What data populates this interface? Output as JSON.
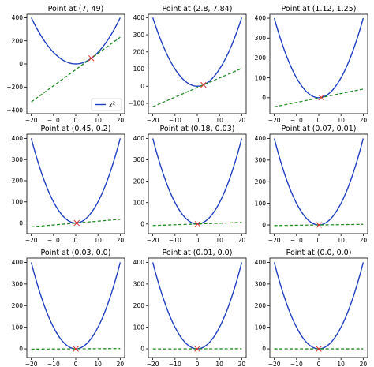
{
  "chart_data": [
    {
      "type": "line",
      "title": "Point at (7, 49)",
      "point": [
        7,
        49
      ],
      "ylim": [
        -430,
        430
      ],
      "xlim": [
        -22,
        22
      ],
      "xticks": [
        -20,
        -10,
        0,
        10,
        20
      ],
      "yticks": [
        -400,
        -200,
        0,
        200,
        400
      ],
      "legend": {
        "label": "x²",
        "base": "x",
        "exponent": "2",
        "location": "lower-right"
      },
      "series": [
        {
          "kind": "curve",
          "expr": "x^2",
          "color": "#1f3fbf"
        },
        {
          "kind": "tangent",
          "color": "#228b22",
          "dash": true
        }
      ]
    },
    {
      "type": "line",
      "title": "Point at (2.8, 7.84)",
      "point": [
        2.8,
        7.84
      ],
      "ylim": [
        -160,
        420
      ],
      "xlim": [
        -22,
        22
      ],
      "xticks": [
        -20,
        -10,
        0,
        10,
        20
      ],
      "yticks": [
        -100,
        0,
        100,
        200,
        300,
        400
      ],
      "series": [
        {
          "kind": "curve",
          "expr": "x^2",
          "color": "#1f3fbf"
        },
        {
          "kind": "tangent",
          "color": "#228b22",
          "dash": true
        }
      ]
    },
    {
      "type": "line",
      "title": "Point at (1.12, 1.25)",
      "point": [
        1.12,
        1.25
      ],
      "ylim": [
        -80,
        420
      ],
      "xlim": [
        -22,
        22
      ],
      "xticks": [
        -20,
        -10,
        0,
        10,
        20
      ],
      "yticks": [
        0,
        100,
        200,
        300,
        400
      ],
      "series": [
        {
          "kind": "curve",
          "expr": "x^2",
          "color": "#1f3fbf"
        },
        {
          "kind": "tangent",
          "color": "#228b22",
          "dash": true
        }
      ]
    },
    {
      "type": "line",
      "title": "Point at (0.45, 0.2)",
      "point": [
        0.45,
        0.2
      ],
      "ylim": [
        -50,
        420
      ],
      "xlim": [
        -22,
        22
      ],
      "xticks": [
        -20,
        -10,
        0,
        10,
        20
      ],
      "yticks": [
        0,
        100,
        200,
        300,
        400
      ],
      "series": [
        {
          "kind": "curve",
          "expr": "x^2",
          "color": "#1f3fbf"
        },
        {
          "kind": "tangent",
          "color": "#228b22",
          "dash": true
        }
      ]
    },
    {
      "type": "line",
      "title": "Point at (0.18, 0.03)",
      "point": [
        0.18,
        0.03
      ],
      "ylim": [
        -45,
        420
      ],
      "xlim": [
        -22,
        22
      ],
      "xticks": [
        -20,
        -10,
        0,
        10,
        20
      ],
      "yticks": [
        0,
        100,
        200,
        300,
        400
      ],
      "series": [
        {
          "kind": "curve",
          "expr": "x^2",
          "color": "#1f3fbf"
        },
        {
          "kind": "tangent",
          "color": "#228b22",
          "dash": true
        }
      ]
    },
    {
      "type": "line",
      "title": "Point at (0.07, 0.01)",
      "point": [
        0.07,
        0.01
      ],
      "ylim": [
        -40,
        420
      ],
      "xlim": [
        -22,
        22
      ],
      "xticks": [
        -20,
        -10,
        0,
        10,
        20
      ],
      "yticks": [
        0,
        100,
        200,
        300,
        400
      ],
      "series": [
        {
          "kind": "curve",
          "expr": "x^2",
          "color": "#1f3fbf"
        },
        {
          "kind": "tangent",
          "color": "#228b22",
          "dash": true
        }
      ]
    },
    {
      "type": "line",
      "title": "Point at (0.03, 0.0)",
      "point": [
        0.03,
        0.0
      ],
      "ylim": [
        -40,
        420
      ],
      "xlim": [
        -22,
        22
      ],
      "xticks": [
        -20,
        -10,
        0,
        10,
        20
      ],
      "yticks": [
        0,
        100,
        200,
        300,
        400
      ],
      "series": [
        {
          "kind": "curve",
          "expr": "x^2",
          "color": "#1f3fbf"
        },
        {
          "kind": "tangent",
          "color": "#228b22",
          "dash": true
        }
      ]
    },
    {
      "type": "line",
      "title": "Point at (0.01, 0.0)",
      "point": [
        0.01,
        0.0
      ],
      "ylim": [
        -40,
        420
      ],
      "xlim": [
        -22,
        22
      ],
      "xticks": [
        -20,
        -10,
        0,
        10,
        20
      ],
      "yticks": [
        0,
        100,
        200,
        300,
        400
      ],
      "series": [
        {
          "kind": "curve",
          "expr": "x^2",
          "color": "#1f3fbf"
        },
        {
          "kind": "tangent",
          "color": "#228b22",
          "dash": true
        }
      ]
    },
    {
      "type": "line",
      "title": "Point at (0.0, 0.0)",
      "point": [
        0.0,
        0.0
      ],
      "ylim": [
        -40,
        420
      ],
      "xlim": [
        -22,
        22
      ],
      "xticks": [
        -20,
        -10,
        0,
        10,
        20
      ],
      "yticks": [
        0,
        100,
        200,
        300,
        400
      ],
      "series": [
        {
          "kind": "curve",
          "expr": "x^2",
          "color": "#1f3fbf"
        },
        {
          "kind": "tangent",
          "color": "#228b22",
          "dash": true
        }
      ]
    }
  ],
  "colors": {
    "curve": "#1f3fbf",
    "tangent": "#228b22",
    "marker": "#e03030",
    "axes": "#000000"
  }
}
